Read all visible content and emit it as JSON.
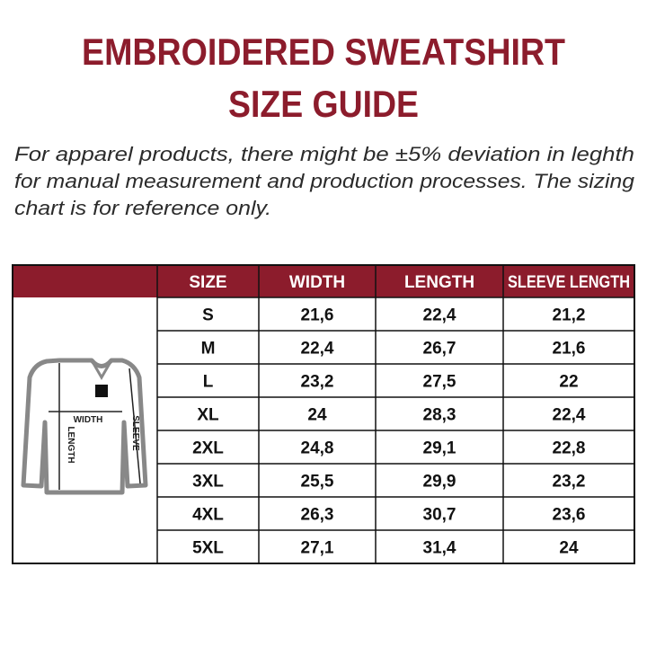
{
  "header": {
    "title_lines": [
      "EMBROIDERED SWEATSHIRT",
      "SIZE GUIDE"
    ],
    "note_lines": [
      "For apparel products, there might be ±5% deviation in leghth",
      "for manual measurement and production processes. The sizing",
      "chart is for reference only."
    ]
  },
  "illustration": {
    "labels": [
      "WIDTH",
      "LENGTH",
      "SLEEVE"
    ]
  },
  "table": {
    "columns": [
      "SIZE",
      "WIDTH",
      "LENGTH",
      "SLEEVE LENGTH"
    ],
    "rows": [
      [
        "S",
        "21,6",
        "22,4",
        "21,2"
      ],
      [
        "M",
        "22,4",
        "26,7",
        "21,6"
      ],
      [
        "L",
        "23,2",
        "27,5",
        "22"
      ],
      [
        "XL",
        "24",
        "28,3",
        "22,4"
      ],
      [
        "2XL",
        "24,8",
        "29,1",
        "22,8"
      ],
      [
        "3XL",
        "25,5",
        "29,9",
        "23,2"
      ],
      [
        "4XL",
        "26,3",
        "30,7",
        "23,6"
      ],
      [
        "5XL",
        "27,1",
        "31,4",
        "24"
      ]
    ]
  }
}
